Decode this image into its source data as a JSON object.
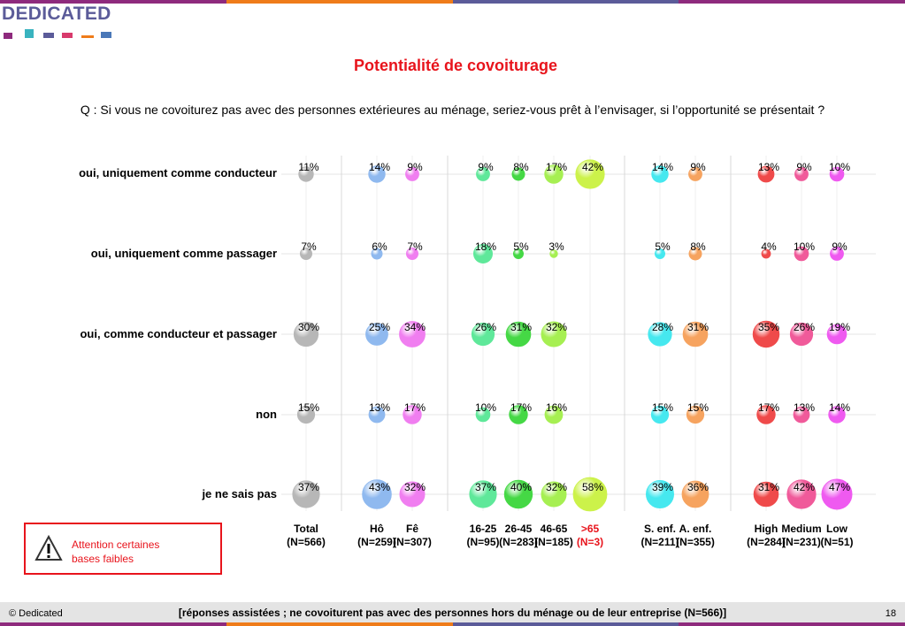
{
  "brand": {
    "name": "DEDICATED",
    "colors": [
      "#8e2a7d",
      "#39b3bf",
      "#5b5b99",
      "#d83a6c",
      "#ef7c1a",
      "#4a78b8"
    ]
  },
  "title": "Potentialité de covoiturage",
  "question": "Q : Si vous ne covoiturez pas avec des personnes extérieures au ménage, seriez-vous prêt à l’envisager, si l’opportunité se présentait ?",
  "warning": {
    "icon": "warning-triangle-icon",
    "text_line1": "Attention certaines",
    "text_line2": "bases faibles"
  },
  "footer": {
    "left": "© Dedicated",
    "center": "[réponses assistées ; ne covoiturent pas avec des personnes hors du ménage ou de leur entreprise (N=566)]",
    "page": "18"
  },
  "chart_data": {
    "type": "bubble",
    "rows": [
      "oui, uniquement comme conducteur",
      "oui, uniquement comme passager",
      "oui, comme conducteur et passager",
      "non",
      "je ne sais pas"
    ],
    "columns": [
      {
        "label": "Total",
        "n": "(N=566)",
        "color": "#b7b7b7",
        "values": [
          11,
          7,
          30,
          15,
          37
        ]
      },
      {
        "label": "Hô",
        "n": "(N=259)",
        "color": "#8fb9ef",
        "values": [
          14,
          6,
          25,
          13,
          43
        ]
      },
      {
        "label": "Fê",
        "n": "(N=307)",
        "color": "#f07ef0",
        "values": [
          9,
          7,
          34,
          17,
          32
        ]
      },
      {
        "label": "16-25",
        "n": "(N=95)",
        "color": "#5fe89a",
        "values": [
          9,
          18,
          26,
          10,
          37
        ]
      },
      {
        "label": "26-45",
        "n": "(N=283)",
        "color": "#45d845",
        "values": [
          8,
          5,
          31,
          17,
          40
        ]
      },
      {
        "label": "46-65",
        "n": "(N=185)",
        "color": "#a6ef52",
        "values": [
          17,
          3,
          32,
          16,
          32
        ]
      },
      {
        "label": ">65",
        "n": "(N=3)",
        "color": "#ccf24a",
        "label_color": "#e8141c",
        "values": [
          42,
          null,
          null,
          null,
          58
        ]
      },
      {
        "label": "S. enf.",
        "n": "(N=211)",
        "color": "#46e8ef",
        "values": [
          14,
          5,
          28,
          15,
          39
        ]
      },
      {
        "label": "A. enf.",
        "n": "(N=355)",
        "color": "#f6a35f",
        "values": [
          9,
          8,
          31,
          15,
          36
        ]
      },
      {
        "label": "High",
        "n": "(N=284)",
        "color": "#ef4a4a",
        "values": [
          13,
          4,
          35,
          17,
          31
        ]
      },
      {
        "label": "Medium",
        "n": "(N=231)",
        "color": "#f05a9a",
        "values": [
          9,
          10,
          26,
          13,
          42
        ]
      },
      {
        "label": "Low",
        "n": "(N=51)",
        "color": "#ef5af0",
        "values": [
          10,
          9,
          19,
          14,
          47
        ]
      }
    ],
    "value_suffix": "%",
    "grid": true
  }
}
